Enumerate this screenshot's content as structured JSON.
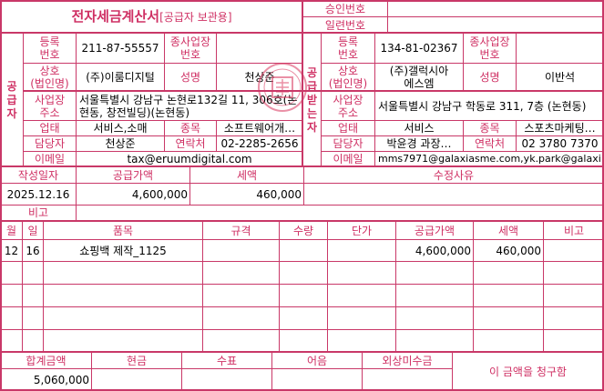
{
  "title": {
    "main": "전자세금계산서",
    "sub": "[공급자 보관용]"
  },
  "approval": {
    "approval_label": "승인번호",
    "approval_value": "",
    "serial_label": "일련번호",
    "serial_value": ""
  },
  "supplier": {
    "section_label": "공\n급\n자",
    "reg_label": "등록\n번호",
    "reg_value": "211-87-55557",
    "branch_label": "종사업장\n번호",
    "branch_value": "",
    "company_label": "상호\n(법인명)",
    "company_value": "(주)이룸디지털",
    "name_label": "성명",
    "name_value": "천상준",
    "address_label": "사업장\n주소",
    "address_value": "서울특별시 강남구 논현로132길 11, 306호(논현동, 창전빌딩)(논현동)",
    "biz_type_label": "업태",
    "biz_type_value": "서비스,소매",
    "item_label": "종목",
    "item_value": "소프트웨어개…",
    "contact_label": "담당자",
    "contact_value": "천상준",
    "phone_label": "연락처",
    "phone_value": "02-2285-2656",
    "email_label": "이메일",
    "email_value": "tax@eruumdigital.com"
  },
  "receiver": {
    "section_label": "공\n급\n받\n는\n자",
    "reg_label": "등록\n번호",
    "reg_value": "134-81-02367",
    "branch_label": "종사업장\n번호",
    "branch_value": "",
    "company_label": "상호\n(법인명)",
    "company_value": "(주)갤럭시아\n에스엠",
    "name_label": "성명",
    "name_value": "이반석",
    "address_label": "사업장\n주소",
    "address_value": "서울특별시 강남구 학동로 311, 7층 (논현동)",
    "biz_type_label": "업태",
    "biz_type_value": "서비스",
    "item_label": "종목",
    "item_value": "스포츠마케팅…",
    "contact_label": "담당자",
    "contact_value": "박윤경 과장…",
    "phone_label": "연락처",
    "phone_value": "02 3780 7370",
    "email_label": "이메일",
    "email_value": "mms7971@galaxiasme.com,yk.park@galaxi…"
  },
  "summary": {
    "date_label": "작성일자",
    "date_value": "2025.12.16",
    "supply_label": "공급가액",
    "supply_value": "4,600,000",
    "tax_label": "세액",
    "tax_value": "460,000",
    "reason_label": "수정사유",
    "reason_value": "",
    "note_label": "비고",
    "note_value": ""
  },
  "items": {
    "headers": [
      "월",
      "일",
      "품목",
      "규격",
      "수량",
      "단가",
      "공급가액",
      "세액",
      "비고"
    ],
    "rows": [
      [
        "12",
        "16",
        "쇼핑백 제작_1125",
        "",
        "",
        "",
        "4,600,000",
        "460,000",
        ""
      ],
      [
        "",
        "",
        "",
        "",
        "",
        "",
        "",
        "",
        ""
      ],
      [
        "",
        "",
        "",
        "",
        "",
        "",
        "",
        "",
        ""
      ],
      [
        "",
        "",
        "",
        "",
        "",
        "",
        "",
        "",
        ""
      ],
      [
        "",
        "",
        "",
        "",
        "",
        "",
        "",
        "",
        ""
      ]
    ]
  },
  "totals": {
    "headers": [
      "합계금액",
      "현금",
      "수표",
      "어음",
      "외상미수금"
    ],
    "values": [
      "5,060,000",
      "",
      "",
      "",
      ""
    ],
    "claim_text": "이 금액을 청구함"
  },
  "colors": {
    "line": "#c93868",
    "label": "#cf2f63"
  }
}
